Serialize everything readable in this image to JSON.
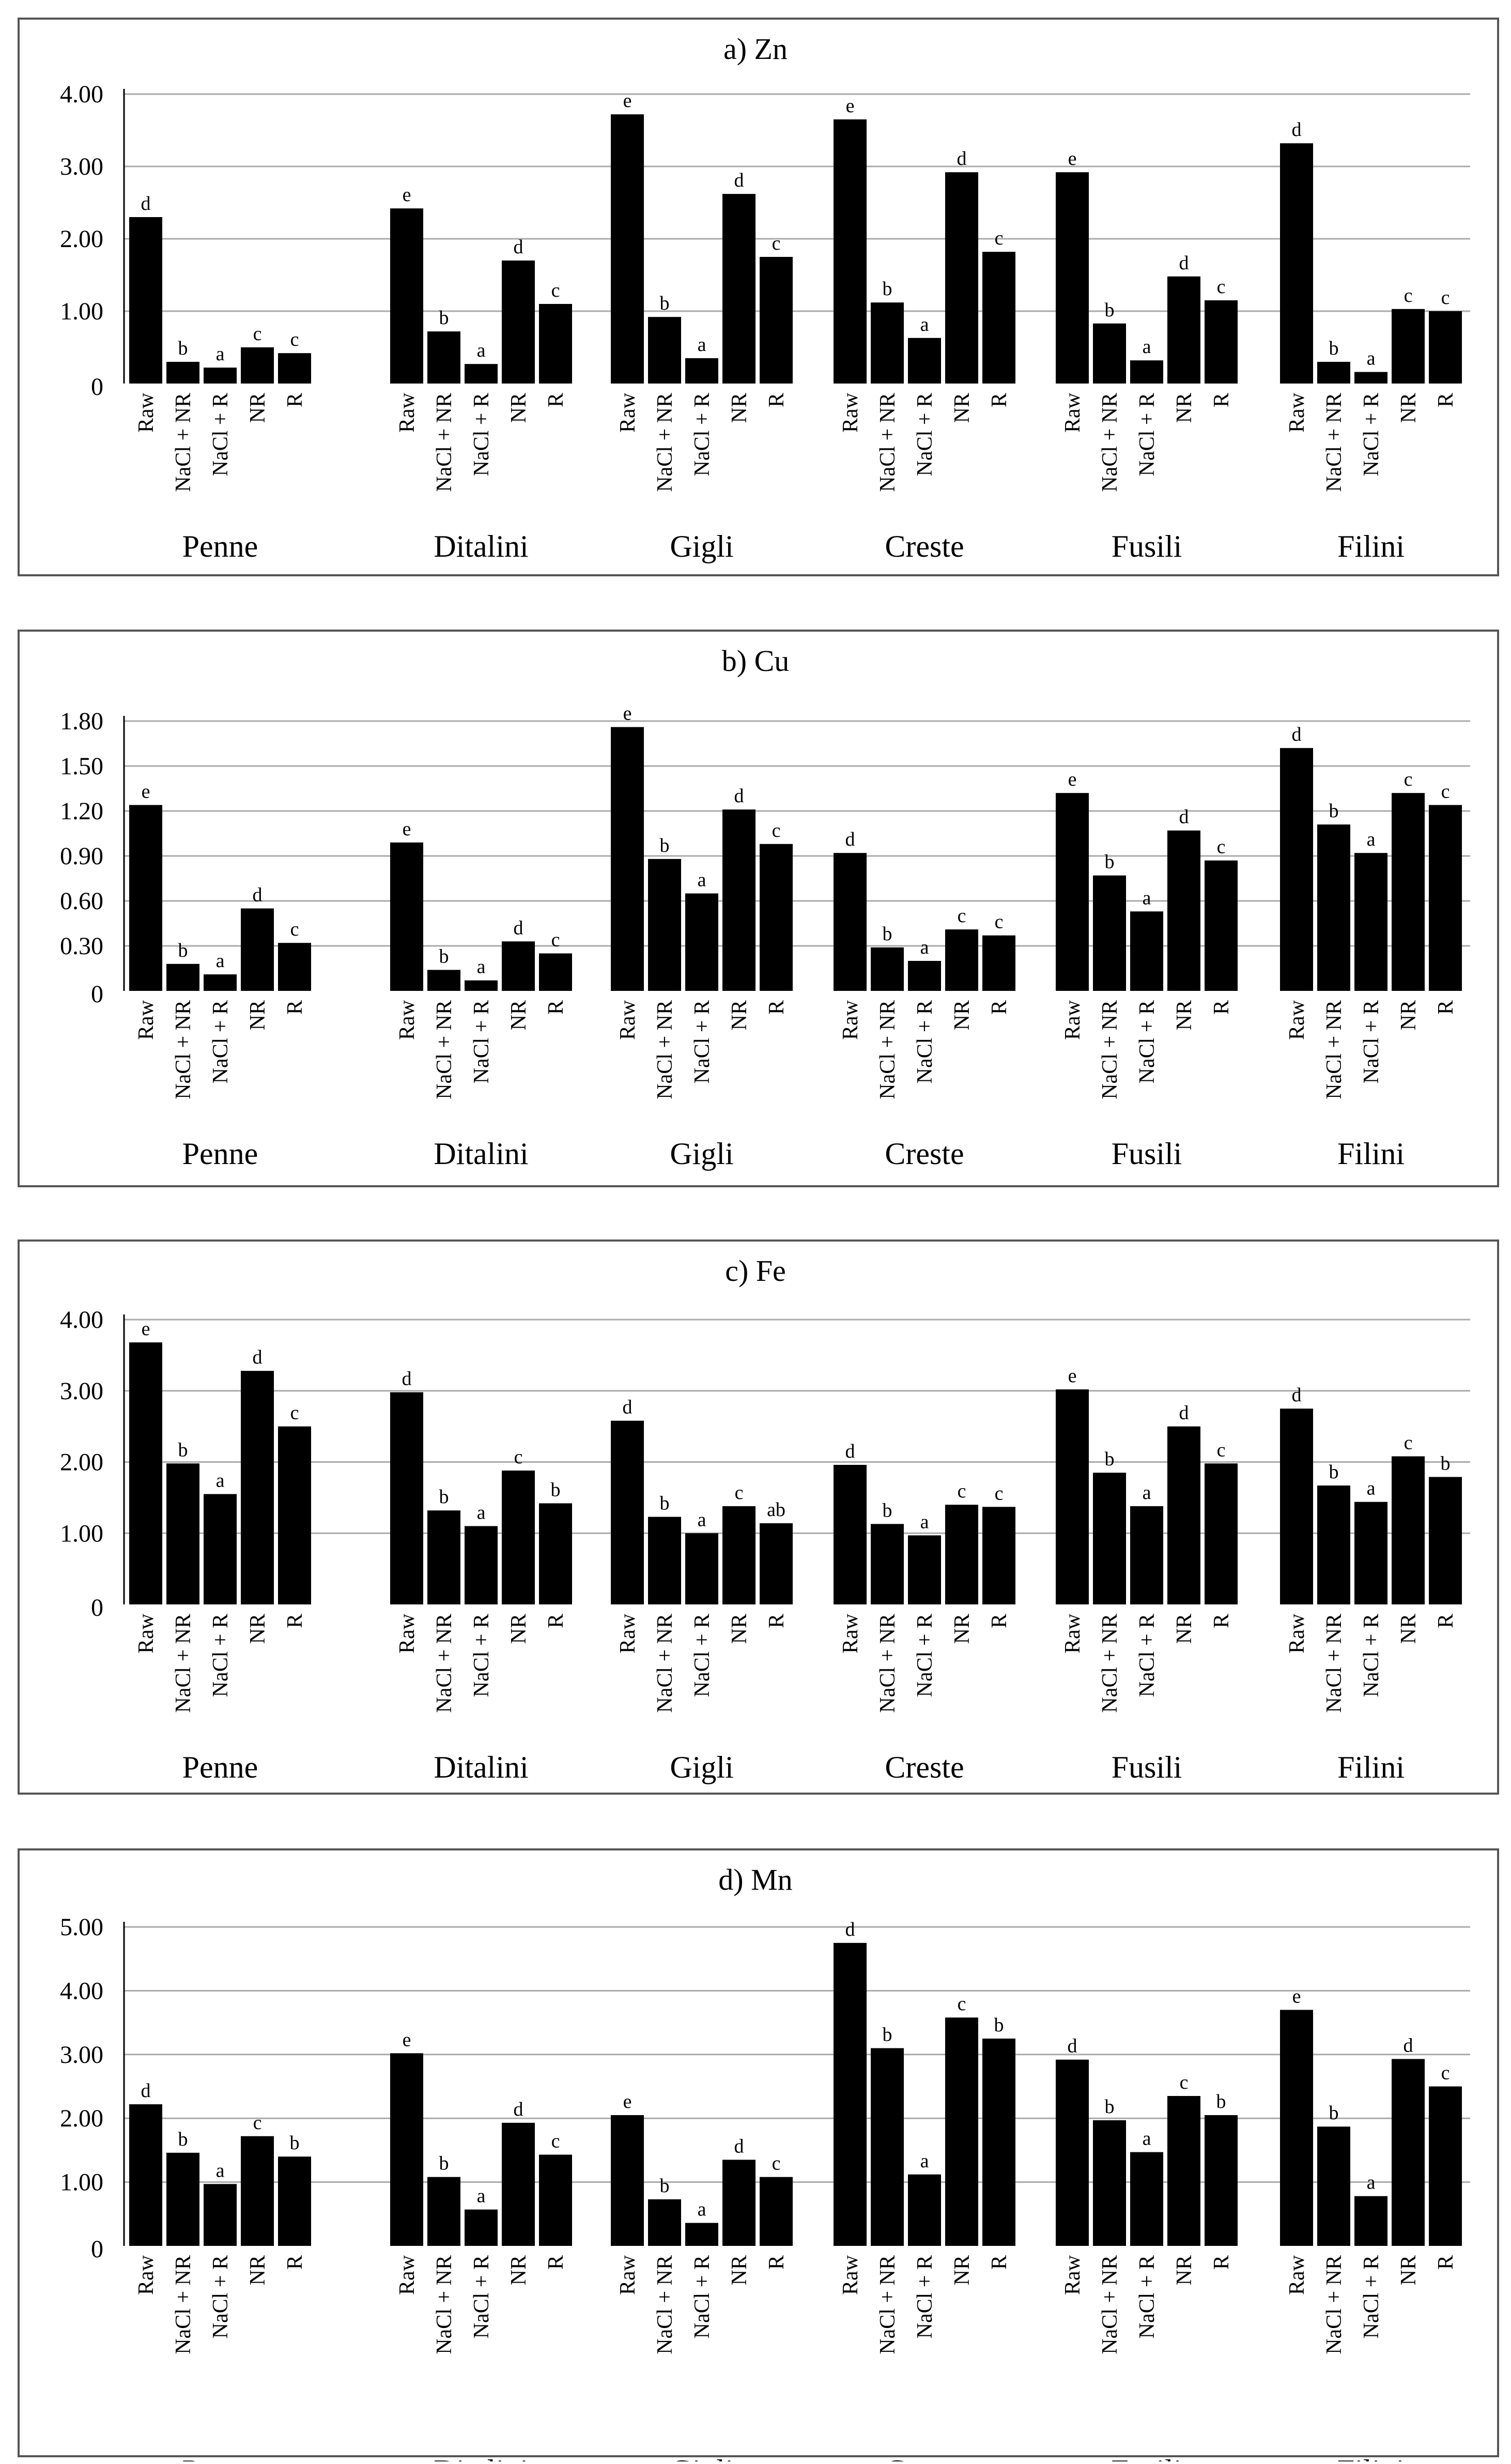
{
  "chart_data": [
    {
      "type": "bar",
      "title": "a) Zn",
      "ylim": [
        0,
        4
      ],
      "ytick_labels": [
        "0",
        "1.00",
        "2.00",
        "3.00",
        "4.00"
      ],
      "groups": [
        "Penne",
        "Ditalini",
        "Gigli",
        "Creste",
        "Fusili",
        "Filini"
      ],
      "categories": [
        "Raw",
        "NaCl + NR",
        "NaCl + R",
        "NR",
        "R"
      ],
      "series": [
        {
          "name": "Penne",
          "values": [
            2.3,
            0.3,
            0.22,
            0.5,
            0.42
          ],
          "letters": [
            "d",
            "b",
            "a",
            "c",
            "c"
          ]
        },
        {
          "name": "Ditalini",
          "values": [
            2.42,
            0.72,
            0.27,
            1.7,
            1.1
          ],
          "letters": [
            "e",
            "b",
            "a",
            "d",
            "c"
          ]
        },
        {
          "name": "Gigli",
          "values": [
            3.72,
            0.92,
            0.35,
            2.62,
            1.75
          ],
          "letters": [
            "e",
            "b",
            "a",
            "d",
            "c"
          ]
        },
        {
          "name": "Creste",
          "values": [
            3.65,
            1.12,
            0.63,
            2.92,
            1.82
          ],
          "letters": [
            "e",
            "b",
            "a",
            "d",
            "c"
          ]
        },
        {
          "name": "Fusili",
          "values": [
            2.92,
            0.83,
            0.32,
            1.48,
            1.15
          ],
          "letters": [
            "e",
            "b",
            "a",
            "d",
            "c"
          ]
        },
        {
          "name": "Filini",
          "values": [
            3.32,
            0.3,
            0.16,
            1.03,
            1.0
          ],
          "letters": [
            "d",
            "b",
            "a",
            "c",
            "c"
          ]
        }
      ]
    },
    {
      "type": "bar",
      "title": "b) Cu",
      "ylim": [
        0,
        1.8
      ],
      "ytick_labels": [
        "0",
        "0.30",
        "0.60",
        "0.90",
        "1.20",
        "1.50",
        "1.80"
      ],
      "groups": [
        "Penne",
        "Ditalini",
        "Gigli",
        "Creste",
        "Fusili",
        "Filini"
      ],
      "categories": [
        "Raw",
        "NaCl + NR",
        "NaCl + R",
        "NR",
        "R"
      ],
      "series": [
        {
          "name": "Penne",
          "values": [
            1.24,
            0.18,
            0.11,
            0.55,
            0.32
          ],
          "letters": [
            "e",
            "b",
            "a",
            "d",
            "c"
          ]
        },
        {
          "name": "Ditalini",
          "values": [
            0.99,
            0.14,
            0.07,
            0.33,
            0.25
          ],
          "letters": [
            "e",
            "b",
            "a",
            "d",
            "c"
          ]
        },
        {
          "name": "Gigli",
          "values": [
            1.76,
            0.88,
            0.65,
            1.21,
            0.98
          ],
          "letters": [
            "e",
            "b",
            "a",
            "d",
            "c"
          ]
        },
        {
          "name": "Creste",
          "values": [
            0.92,
            0.29,
            0.2,
            0.41,
            0.37
          ],
          "letters": [
            "d",
            "b",
            "a",
            "c",
            "c"
          ]
        },
        {
          "name": "Fusili",
          "values": [
            1.32,
            0.77,
            0.53,
            1.07,
            0.87
          ],
          "letters": [
            "e",
            "b",
            "a",
            "d",
            "c"
          ]
        },
        {
          "name": "Filini",
          "values": [
            1.62,
            1.11,
            0.92,
            1.32,
            1.24
          ],
          "letters": [
            "d",
            "b",
            "a",
            "c",
            "c"
          ]
        }
      ]
    },
    {
      "type": "bar",
      "title": "c) Fe",
      "ylim": [
        0,
        4
      ],
      "ytick_labels": [
        "0",
        "1.00",
        "2.00",
        "3.00",
        "4.00"
      ],
      "groups": [
        "Penne",
        "Ditalini",
        "Gigli",
        "Creste",
        "Fusili",
        "Filini"
      ],
      "categories": [
        "Raw",
        "NaCl + NR",
        "NaCl + R",
        "NR",
        "R"
      ],
      "series": [
        {
          "name": "Penne",
          "values": [
            3.68,
            1.98,
            1.55,
            3.28,
            2.5
          ],
          "letters": [
            "e",
            "b",
            "a",
            "d",
            "c"
          ]
        },
        {
          "name": "Ditalini",
          "values": [
            2.98,
            1.32,
            1.1,
            1.88,
            1.42
          ],
          "letters": [
            "d",
            "b",
            "a",
            "c",
            "b"
          ]
        },
        {
          "name": "Gigli",
          "values": [
            2.58,
            1.23,
            1.0,
            1.38,
            1.14
          ],
          "letters": [
            "d",
            "b",
            "a",
            "c",
            "ab"
          ]
        },
        {
          "name": "Creste",
          "values": [
            1.96,
            1.13,
            0.97,
            1.4,
            1.37
          ],
          "letters": [
            "d",
            "b",
            "a",
            "c",
            "c"
          ]
        },
        {
          "name": "Fusili",
          "values": [
            3.02,
            1.85,
            1.38,
            2.5,
            1.98
          ],
          "letters": [
            "e",
            "b",
            "a",
            "d",
            "c"
          ]
        },
        {
          "name": "Filini",
          "values": [
            2.75,
            1.67,
            1.44,
            2.08,
            1.79
          ],
          "letters": [
            "d",
            "b",
            "a",
            "c",
            "b"
          ]
        }
      ]
    },
    {
      "type": "bar",
      "title": "d) Mn",
      "ylim": [
        0,
        5
      ],
      "ytick_labels": [
        "0",
        "1.00",
        "2.00",
        "3.00",
        "4.00",
        "5.00"
      ],
      "groups": [
        "Penne",
        "Ditalini",
        "Gigli",
        "Creste",
        "Fusili",
        "Filini"
      ],
      "categories": [
        "Raw",
        "NaCl + NR",
        "NaCl + R",
        "NR",
        "R"
      ],
      "series": [
        {
          "name": "Penne",
          "values": [
            2.22,
            1.46,
            0.97,
            1.72,
            1.4
          ],
          "letters": [
            "d",
            "b",
            "a",
            "c",
            "b"
          ]
        },
        {
          "name": "Ditalini",
          "values": [
            3.02,
            1.08,
            0.57,
            1.93,
            1.43
          ],
          "letters": [
            "e",
            "b",
            "a",
            "d",
            "c"
          ]
        },
        {
          "name": "Gigli",
          "values": [
            2.05,
            0.73,
            0.36,
            1.35,
            1.08
          ],
          "letters": [
            "e",
            "b",
            "a",
            "d",
            "c"
          ]
        },
        {
          "name": "Creste",
          "values": [
            4.75,
            3.1,
            1.12,
            3.58,
            3.25
          ],
          "letters": [
            "d",
            "b",
            "a",
            "c",
            "b"
          ]
        },
        {
          "name": "Fusili",
          "values": [
            2.92,
            1.97,
            1.47,
            2.35,
            2.05
          ],
          "letters": [
            "d",
            "b",
            "a",
            "c",
            "b"
          ]
        },
        {
          "name": "Filini",
          "values": [
            3.7,
            1.87,
            0.78,
            2.93,
            2.5
          ],
          "letters": [
            "e",
            "b",
            "a",
            "d",
            "c"
          ]
        }
      ]
    }
  ]
}
